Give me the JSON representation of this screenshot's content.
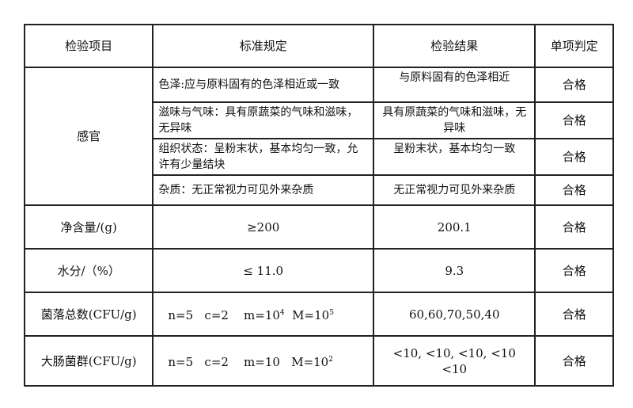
{
  "headers": [
    "检验项目",
    "标准规定",
    "检验结果",
    "单项判定"
  ],
  "sensory": {
    "item": "感官",
    "rows": [
      {
        "standard": "色泽:应与原料固有的色泽相近或一致",
        "result": "与原料固有的色泽相近",
        "verdict": "合格"
      },
      {
        "standard": "滋味与气味：具有原蔬菜的气味和滋味，无异味",
        "result": "具有原蔬菜的气味和滋味，无异味",
        "verdict": "合格"
      },
      {
        "standard": "组织状态：呈粉末状，基本均匀一致，允许有少量结块",
        "result": "呈粉末状，基本均匀一致",
        "verdict": "合格"
      },
      {
        "standard": "杂质：无正常视力可见外来杂质",
        "result": "无正常视力可见外来杂质",
        "verdict": "合格"
      }
    ]
  },
  "net": {
    "item": "净含量/(g)",
    "standard": "≥200",
    "result": "200.1",
    "verdict": "合格"
  },
  "moisture": {
    "item": "水分/（%）",
    "standard": "≤ 11.0",
    "result": "9.3",
    "verdict": "合格"
  },
  "colony": {
    "item": "菌落总数(CFU/g)",
    "std_a": "n=5   c=2    m=10",
    "std_exp1": "4",
    "std_b": "  M=10",
    "std_exp2": "5",
    "result": "60,60,70,50,40",
    "verdict": "合格"
  },
  "coliform": {
    "item": "大肠菌群(CFU/g)",
    "std_a": "n=5   c=2    m=10   M=10",
    "std_exp": "2",
    "result": "<10, <10, <10, <10 <10",
    "verdict": "合格"
  }
}
